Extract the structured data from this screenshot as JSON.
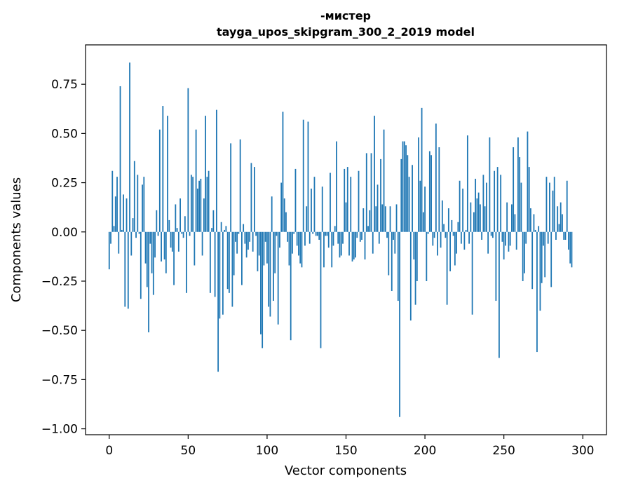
{
  "chart_data": {
    "type": "bar",
    "title_line1": "-мистер",
    "title_line2": "tayga_upos_skipgram_300_2_2019 model",
    "xlabel": "Vector components",
    "ylabel": "Components values",
    "xlim": [
      -15,
      315
    ],
    "ylim": [
      -1.03,
      0.95
    ],
    "xticks": [
      0,
      50,
      100,
      150,
      200,
      250,
      300
    ],
    "xtick_labels": [
      "0",
      "50",
      "100",
      "150",
      "200",
      "250",
      "300"
    ],
    "yticks": [
      0.75,
      0.5,
      0.25,
      0.0,
      -0.25,
      -0.5,
      -0.75,
      -1.0
    ],
    "ytick_labels": [
      "0.75",
      "0.50",
      "0.25",
      "0.00",
      "−0.25",
      "−0.50",
      "−0.75",
      "−1.00"
    ],
    "bar_color": "#1f77b4",
    "grid": false,
    "values": [
      -0.19,
      -0.06,
      0.31,
      0.03,
      0.18,
      0.28,
      -0.11,
      0.74,
      0.01,
      0.19,
      -0.38,
      0.17,
      -0.39,
      0.86,
      -0.12,
      0.07,
      0.36,
      -0.03,
      0.29,
      -0.01,
      -0.34,
      0.24,
      0.28,
      -0.16,
      -0.28,
      -0.51,
      -0.06,
      -0.21,
      -0.32,
      -0.13,
      0.11,
      -0.02,
      0.52,
      -0.15,
      0.64,
      -0.14,
      -0.21,
      0.59,
      0.06,
      -0.08,
      -0.1,
      -0.27,
      0.14,
      0.02,
      -0.1,
      0.17,
      -0.01,
      -0.03,
      0.08,
      -0.31,
      0.73,
      -0.02,
      0.29,
      0.28,
      -0.17,
      0.52,
      0.22,
      0.26,
      0.27,
      -0.12,
      0.17,
      0.59,
      0.28,
      0.31,
      -0.31,
      0.02,
      0.11,
      -0.33,
      0.62,
      -0.71,
      -0.44,
      0.05,
      -0.42,
      0.01,
      0.03,
      -0.29,
      -0.31,
      0.45,
      -0.38,
      -0.22,
      -0.05,
      -0.11,
      -0.01,
      0.47,
      -0.27,
      0.04,
      -0.06,
      -0.13,
      -0.09,
      -0.05,
      0.35,
      -0.1,
      0.33,
      -0.02,
      -0.2,
      -0.12,
      -0.52,
      -0.59,
      -0.17,
      -0.05,
      -0.16,
      -0.38,
      -0.43,
      0.18,
      -0.35,
      -0.21,
      -0.02,
      -0.47,
      -0.08,
      0.25,
      0.61,
      0.17,
      0.1,
      -0.05,
      -0.17,
      -0.55,
      -0.11,
      -0.01,
      0.32,
      -0.07,
      -0.12,
      -0.16,
      -0.18,
      0.57,
      -0.07,
      0.13,
      0.56,
      -0.06,
      0.22,
      -0.01,
      0.28,
      -0.02,
      -0.02,
      -0.04,
      -0.59,
      0.23,
      -0.18,
      -0.02,
      -0.02,
      -0.08,
      0.3,
      -0.18,
      -0.07,
      0.03,
      0.46,
      -0.06,
      -0.13,
      -0.12,
      -0.06,
      0.32,
      0.15,
      0.33,
      -0.12,
      0.28,
      -0.15,
      -0.14,
      -0.13,
      -0.03,
      0.31,
      -0.05,
      -0.04,
      0.12,
      -0.14,
      0.4,
      0.03,
      0.11,
      0.4,
      -0.11,
      0.59,
      0.13,
      0.24,
      -0.06,
      0.37,
      0.14,
      0.52,
      0.13,
      -0.03,
      -0.22,
      0.13,
      -0.3,
      -0.04,
      -0.11,
      0.14,
      -0.35,
      -0.94,
      0.37,
      0.46,
      0.46,
      0.44,
      0.39,
      0.28,
      -0.45,
      0.34,
      -0.14,
      -0.37,
      -0.25,
      0.48,
      0.26,
      0.63,
      0.1,
      0.23,
      -0.25,
      -0.01,
      0.41,
      0.39,
      -0.07,
      -0.03,
      0.55,
      -0.12,
      0.43,
      -0.08,
      0.16,
      0.04,
      -0.03,
      -0.37,
      0.12,
      -0.2,
      0.06,
      -0.02,
      -0.17,
      -0.11,
      0.05,
      0.26,
      -0.06,
      0.22,
      -0.09,
      0.01,
      0.49,
      -0.06,
      0.15,
      -0.42,
      0.1,
      0.27,
      0.17,
      0.2,
      0.14,
      -0.04,
      0.29,
      0.13,
      0.25,
      -0.11,
      0.48,
      -0.02,
      -0.03,
      0.31,
      -0.35,
      0.33,
      -0.64,
      0.29,
      -0.05,
      -0.14,
      -0.07,
      0.15,
      -0.1,
      -0.07,
      0.14,
      0.43,
      0.09,
      -0.09,
      0.48,
      0.38,
      0.25,
      -0.25,
      -0.21,
      -0.06,
      0.51,
      0.33,
      0.12,
      -0.29,
      0.09,
      0.01,
      -0.61,
      0.03,
      -0.4,
      -0.26,
      -0.07,
      -0.23,
      0.28,
      -0.06,
      0.25,
      -0.28,
      0.21,
      0.28,
      -0.04,
      0.13,
      0.04,
      0.15,
      0.09,
      -0.04,
      -0.04,
      0.26,
      -0.09,
      -0.16,
      -0.18
    ]
  }
}
